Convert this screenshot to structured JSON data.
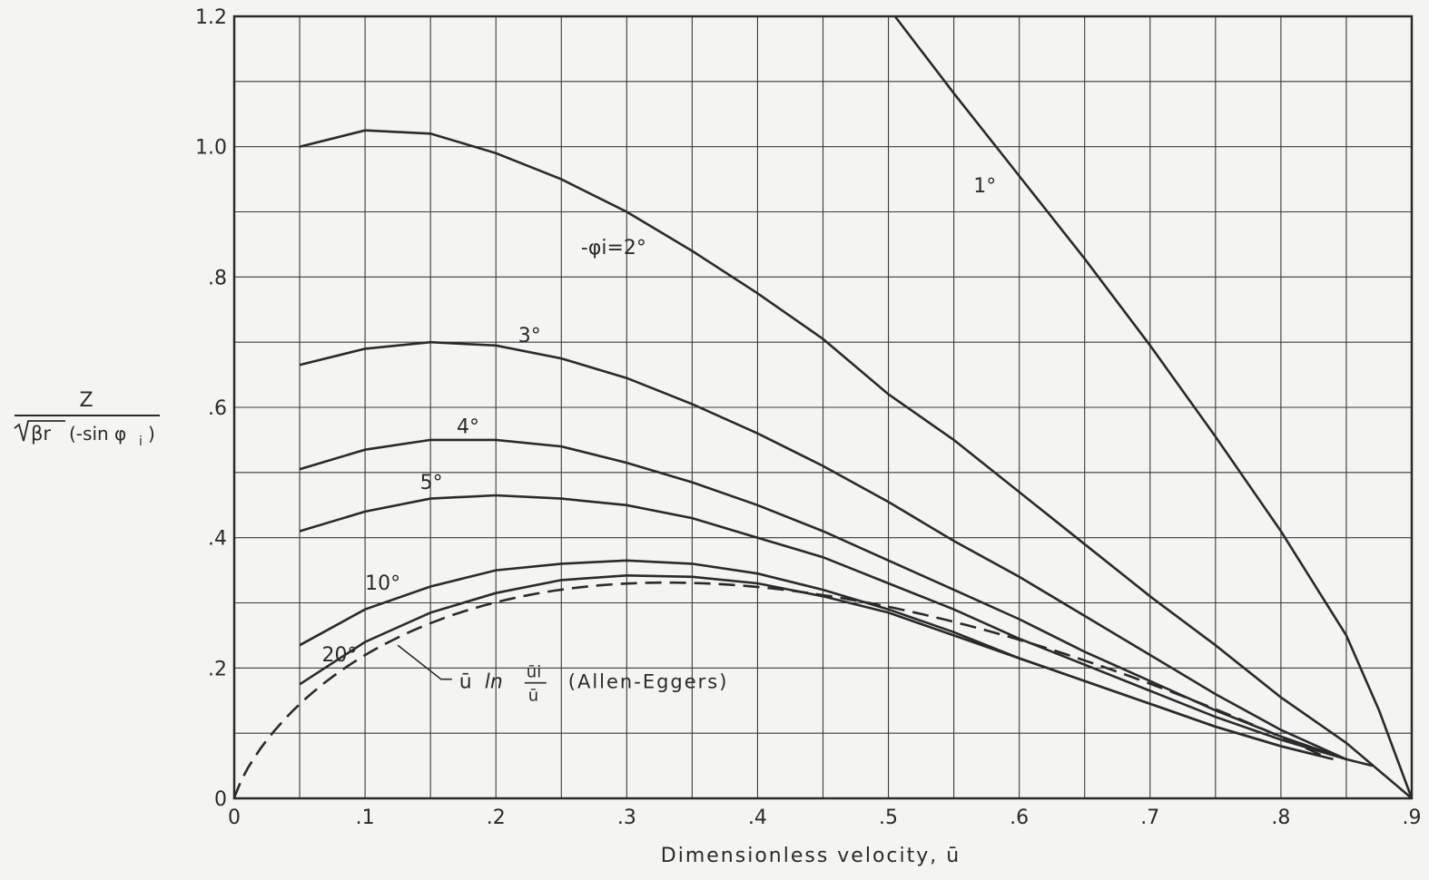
{
  "chart_data": {
    "type": "line",
    "title": "",
    "xlabel": "Dimensionless velocity, ū",
    "ylabel_parts": {
      "numerator": "Z",
      "denominator_sqrt": "βr",
      "denominator_rest": "(-sin φ",
      "denominator_sub": "i",
      "denominator_close": ")"
    },
    "xlim": [
      0,
      0.9
    ],
    "ylim": [
      0,
      1.2
    ],
    "grid": true,
    "grid_x_step": 0.05,
    "grid_y_step": 0.1,
    "x_ticks": [
      {
        "value": 0,
        "label": "0"
      },
      {
        "value": 0.1,
        "label": ".1"
      },
      {
        "value": 0.2,
        "label": ".2"
      },
      {
        "value": 0.3,
        "label": ".3"
      },
      {
        "value": 0.4,
        "label": ".4"
      },
      {
        "value": 0.5,
        "label": ".5"
      },
      {
        "value": 0.6,
        "label": ".6"
      },
      {
        "value": 0.7,
        "label": ".7"
      },
      {
        "value": 0.8,
        "label": ".8"
      },
      {
        "value": 0.9,
        "label": ".9"
      }
    ],
    "y_ticks": [
      {
        "value": 0,
        "label": "0"
      },
      {
        "value": 0.2,
        "label": ".2"
      },
      {
        "value": 0.4,
        "label": ".4"
      },
      {
        "value": 0.6,
        "label": ".6"
      },
      {
        "value": 0.8,
        "label": ".8"
      },
      {
        "value": 1.0,
        "label": "1.0"
      },
      {
        "value": 1.2,
        "label": "1.2"
      }
    ],
    "series": [
      {
        "name": "1°",
        "label": "1°",
        "style": "solid",
        "label_at": [
          0.565,
          0.93
        ],
        "points": [
          [
            0.505,
            1.2
          ],
          [
            0.55,
            1.082
          ],
          [
            0.6,
            0.955
          ],
          [
            0.65,
            0.828
          ],
          [
            0.7,
            0.695
          ],
          [
            0.75,
            0.555
          ],
          [
            0.8,
            0.41
          ],
          [
            0.85,
            0.25
          ],
          [
            0.875,
            0.135
          ],
          [
            0.9,
            0
          ]
        ]
      },
      {
        "name": "2°",
        "label": "-φi=2°",
        "style": "solid",
        "label_at": [
          0.265,
          0.835
        ],
        "points": [
          [
            0.05,
            1.0
          ],
          [
            0.1,
            1.025
          ],
          [
            0.15,
            1.02
          ],
          [
            0.2,
            0.99
          ],
          [
            0.25,
            0.95
          ],
          [
            0.3,
            0.9
          ],
          [
            0.35,
            0.84
          ],
          [
            0.4,
            0.775
          ],
          [
            0.45,
            0.705
          ],
          [
            0.5,
            0.62
          ],
          [
            0.55,
            0.55
          ],
          [
            0.6,
            0.47
          ],
          [
            0.65,
            0.39
          ],
          [
            0.7,
            0.31
          ],
          [
            0.75,
            0.235
          ],
          [
            0.8,
            0.155
          ],
          [
            0.85,
            0.085
          ],
          [
            0.9,
            0
          ]
        ]
      },
      {
        "name": "3°",
        "label": "3°",
        "style": "solid",
        "label_at": [
          0.217,
          0.7
        ],
        "points": [
          [
            0.05,
            0.665
          ],
          [
            0.1,
            0.69
          ],
          [
            0.15,
            0.7
          ],
          [
            0.2,
            0.695
          ],
          [
            0.25,
            0.675
          ],
          [
            0.3,
            0.645
          ],
          [
            0.35,
            0.605
          ],
          [
            0.4,
            0.56
          ],
          [
            0.45,
            0.51
          ],
          [
            0.5,
            0.455
          ],
          [
            0.55,
            0.395
          ],
          [
            0.6,
            0.34
          ],
          [
            0.65,
            0.28
          ],
          [
            0.7,
            0.22
          ],
          [
            0.75,
            0.16
          ],
          [
            0.8,
            0.105
          ],
          [
            0.85,
            0.06
          ],
          [
            0.87,
            0.05
          ]
        ]
      },
      {
        "name": "4°",
        "label": "4°",
        "style": "solid",
        "label_at": [
          0.17,
          0.56
        ],
        "points": [
          [
            0.05,
            0.505
          ],
          [
            0.1,
            0.535
          ],
          [
            0.15,
            0.55
          ],
          [
            0.2,
            0.55
          ],
          [
            0.25,
            0.54
          ],
          [
            0.3,
            0.515
          ],
          [
            0.35,
            0.485
          ],
          [
            0.4,
            0.45
          ],
          [
            0.45,
            0.41
          ],
          [
            0.5,
            0.365
          ],
          [
            0.55,
            0.32
          ],
          [
            0.6,
            0.275
          ],
          [
            0.65,
            0.225
          ],
          [
            0.7,
            0.18
          ],
          [
            0.75,
            0.135
          ],
          [
            0.8,
            0.095
          ],
          [
            0.85,
            0.06
          ]
        ]
      },
      {
        "name": "5°",
        "label": "5°",
        "style": "solid",
        "label_at": [
          0.142,
          0.475
        ],
        "points": [
          [
            0.05,
            0.41
          ],
          [
            0.1,
            0.44
          ],
          [
            0.15,
            0.46
          ],
          [
            0.2,
            0.465
          ],
          [
            0.25,
            0.46
          ],
          [
            0.3,
            0.45
          ],
          [
            0.35,
            0.43
          ],
          [
            0.4,
            0.4
          ],
          [
            0.45,
            0.37
          ],
          [
            0.5,
            0.33
          ],
          [
            0.55,
            0.29
          ],
          [
            0.6,
            0.245
          ],
          [
            0.65,
            0.205
          ],
          [
            0.7,
            0.165
          ],
          [
            0.75,
            0.125
          ],
          [
            0.8,
            0.09
          ],
          [
            0.85,
            0.06
          ]
        ]
      },
      {
        "name": "10°",
        "label": "10°",
        "style": "solid",
        "label_at": [
          0.1,
          0.32
        ],
        "points": [
          [
            0.05,
            0.235
          ],
          [
            0.1,
            0.29
          ],
          [
            0.15,
            0.325
          ],
          [
            0.2,
            0.35
          ],
          [
            0.25,
            0.36
          ],
          [
            0.3,
            0.365
          ],
          [
            0.35,
            0.36
          ],
          [
            0.4,
            0.345
          ],
          [
            0.45,
            0.32
          ],
          [
            0.5,
            0.29
          ],
          [
            0.55,
            0.255
          ],
          [
            0.6,
            0.215
          ],
          [
            0.65,
            0.18
          ],
          [
            0.7,
            0.145
          ],
          [
            0.75,
            0.11
          ],
          [
            0.8,
            0.08
          ],
          [
            0.84,
            0.06
          ]
        ]
      },
      {
        "name": "20°",
        "label": "20°",
        "style": "solid",
        "label_at": [
          0.067,
          0.21
        ],
        "points": [
          [
            0.05,
            0.175
          ],
          [
            0.1,
            0.24
          ],
          [
            0.15,
            0.285
          ],
          [
            0.2,
            0.315
          ],
          [
            0.25,
            0.335
          ],
          [
            0.3,
            0.342
          ],
          [
            0.35,
            0.34
          ],
          [
            0.4,
            0.33
          ],
          [
            0.45,
            0.31
          ],
          [
            0.5,
            0.285
          ],
          [
            0.55,
            0.25
          ],
          [
            0.6,
            0.215
          ],
          [
            0.65,
            0.18
          ],
          [
            0.7,
            0.145
          ],
          [
            0.75,
            0.11
          ],
          [
            0.8,
            0.08
          ],
          [
            0.83,
            0.065
          ]
        ]
      },
      {
        "name": "ū ln ūi/ū (Allen-Eggers)",
        "label": "Allen-Eggers",
        "style": "dashed",
        "formula": "u*ln(0.9/u)",
        "x_start": 0.0005,
        "x_end": 0.84,
        "x_step": 0.005
      }
    ],
    "annotation": {
      "prefix": "ū",
      "ln": "ln",
      "num": "ūi",
      "den": "ū",
      "name": "(Allen-Eggers)",
      "text_at": [
        0.165,
        0.18
      ],
      "leader_from": [
        0.16,
        0.195
      ],
      "leader_to": [
        0.125,
        0.235
      ]
    }
  }
}
